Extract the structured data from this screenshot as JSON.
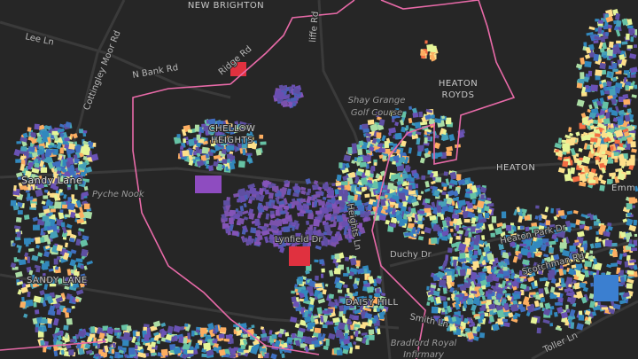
{
  "labels": [
    "NEW BRIGHTON",
    "Lee Ln",
    "Cottingley Moor Rd",
    "N Bank Rd",
    "Ridge Rd",
    "liffe Rd",
    "Shay Grange",
    "Golf Course",
    "HEATON",
    "ROYDS",
    "CHELLOW",
    "HEIGHTS",
    "Sandy Lane",
    "Pyche Nook",
    "HEATON",
    "Emm",
    "Lynfield Dr",
    "Heights Ln",
    "Duchy Dr",
    "Heaton Park Dr",
    "Scotchman Rd",
    "SANDY LANE",
    "DAISY HILL",
    "Smith Ln",
    "Bradford Royal",
    "Infirmary",
    "Toller Ln"
  ]
}
